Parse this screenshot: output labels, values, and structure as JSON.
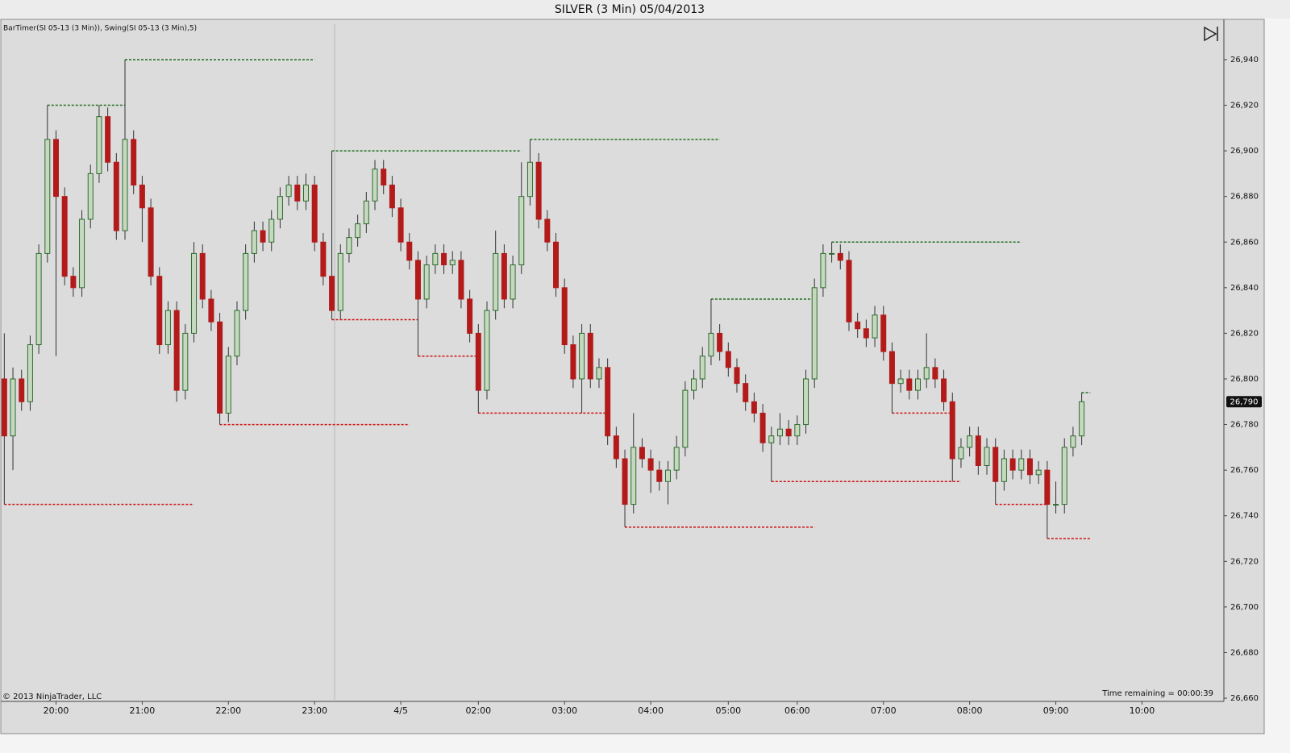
{
  "chart_data": {
    "type": "candlestick",
    "title": "SILVER (3 Min)  05/04/2013",
    "indicator_label": "BarTimer(SI 05-13 (3 Min)), Swing(SI 05-13 (3 Min),5)",
    "copyright": "© 2013 NinjaTrader, LLC",
    "time_remaining": "Time remaining = 00:00:39",
    "up_fill": "#c6d9c0",
    "up_stroke": "#2e6b2e",
    "down_fill": "#b31b1b",
    "wick_color": "#333333",
    "swing_high_color": "#1f6f1f",
    "swing_low_color": "#d01010",
    "last_price": {
      "value": 26790,
      "label": "26,790"
    },
    "ylim": [
      26658.6,
      26957.3
    ],
    "yticks": [
      {
        "value": 26660,
        "label": "26,660"
      },
      {
        "value": 26680,
        "label": "26,680"
      },
      {
        "value": 26700,
        "label": "26,700"
      },
      {
        "value": 26720,
        "label": "26,720"
      },
      {
        "value": 26740,
        "label": "26,740"
      },
      {
        "value": 26760,
        "label": "26,760"
      },
      {
        "value": 26780,
        "label": "26,780"
      },
      {
        "value": 26800,
        "label": "26,800"
      },
      {
        "value": 26820,
        "label": "26,820"
      },
      {
        "value": 26840,
        "label": "26,840"
      },
      {
        "value": 26860,
        "label": "26,860"
      },
      {
        "value": 26880,
        "label": "26,880"
      },
      {
        "value": 26900,
        "label": "26,900"
      },
      {
        "value": 26920,
        "label": "26,920"
      },
      {
        "value": 26940,
        "label": "26,940"
      }
    ],
    "categories": [
      null,
      null,
      null,
      null,
      null,
      null,
      "20:00",
      null,
      null,
      null,
      null,
      null,
      null,
      null,
      null,
      null,
      "21:00",
      null,
      null,
      null,
      null,
      null,
      null,
      null,
      null,
      null,
      "22:00",
      null,
      null,
      null,
      null,
      null,
      null,
      null,
      null,
      null,
      "23:00",
      null,
      null,
      null,
      null,
      null,
      null,
      null,
      null,
      null,
      "4/5",
      null,
      null,
      null,
      null,
      null,
      null,
      null,
      null,
      "02:00",
      null,
      null,
      null,
      null,
      null,
      null,
      null,
      null,
      null,
      "03:00",
      null,
      null,
      null,
      null,
      null,
      null,
      null,
      null,
      null,
      "04:00",
      null,
      null,
      null,
      null,
      null,
      null,
      null,
      null,
      "05:00",
      null,
      null,
      null,
      null,
      null,
      null,
      null,
      "06:00",
      null,
      null,
      null,
      null,
      null,
      null,
      null,
      null,
      null,
      "07:00",
      null,
      null,
      null,
      null,
      null,
      null,
      null,
      null,
      null,
      "08:00",
      null,
      null,
      null,
      null,
      null,
      null,
      null,
      null,
      null,
      "09:00",
      null,
      null,
      null,
      null,
      null,
      null,
      null,
      null,
      null,
      "10:00",
      null,
      null,
      null,
      null,
      null,
      null,
      null,
      null,
      null
    ],
    "open": [
      26800,
      26775,
      26800,
      26790,
      26815,
      26855,
      26905,
      26880,
      26845,
      26840,
      26870,
      26890,
      26915,
      26895,
      26865,
      26905,
      26885,
      26875,
      26845,
      26815,
      26830,
      26795,
      26820,
      26855,
      26835,
      26825,
      26785,
      26810,
      26830,
      26855,
      26865,
      26860,
      26870,
      26880,
      26885,
      26878,
      26885,
      26860,
      26845,
      26830,
      26855,
      26862,
      26868,
      26878,
      26892,
      26885,
      26875,
      26860,
      26852,
      26835,
      26850,
      26855,
      26850,
      26852,
      26835,
      26820,
      26795,
      26830,
      26855,
      26835,
      26850,
      26880,
      26895,
      26870,
      26860,
      26840,
      26815,
      26800,
      26820,
      26800,
      26805,
      26775,
      26765,
      26745,
      26770,
      26765,
      26760,
      26755,
      26760,
      26770,
      26795,
      26800,
      26810,
      26820,
      26812,
      26805,
      26798,
      26790,
      26785,
      26772,
      26775,
      26778,
      26775,
      26780,
      26800,
      26840,
      26855,
      26855,
      26852,
      26825,
      26822,
      26818,
      26828,
      26812,
      26798,
      26800,
      26795,
      26800,
      26805,
      26800,
      26790,
      26765,
      26770,
      26775,
      26762,
      26770,
      26755,
      26765,
      26760,
      26765,
      26758,
      26760,
      26745,
      26745,
      26770,
      26775,
      null,
      null,
      null,
      null,
      null,
      null,
      null,
      null,
      null,
      null,
      null,
      null,
      null,
      null,
      null,
      null
    ],
    "high": [
      26820,
      26805,
      26804,
      26819,
      26859,
      26920,
      26909,
      26884,
      26849,
      26874,
      26894,
      26920,
      26919,
      26899,
      26940,
      26909,
      26889,
      26879,
      26849,
      26834,
      26834,
      26824,
      26860,
      26859,
      26839,
      26829,
      26814,
      26834,
      26859,
      26869,
      26869,
      26874,
      26884,
      26889,
      26889,
      26890,
      26889,
      26864,
      26900,
      26859,
      26866,
      26872,
      26882,
      26896,
      26896,
      26889,
      26879,
      26864,
      26856,
      26854,
      26859,
      26859,
      26856,
      26856,
      26839,
      26824,
      26834,
      26865,
      26859,
      26854,
      26895,
      26905,
      26899,
      26874,
      26864,
      26844,
      26819,
      26824,
      26824,
      26809,
      26809,
      26779,
      26769,
      26785,
      26774,
      26769,
      26764,
      26764,
      26775,
      26799,
      26804,
      26814,
      26835,
      26824,
      26816,
      26809,
      26802,
      26794,
      26789,
      26779,
      26785,
      26782,
      26784,
      26804,
      26844,
      26859,
      26860,
      26859,
      26856,
      26829,
      26826,
      26832,
      26832,
      26816,
      26804,
      26804,
      26804,
      26820,
      26809,
      26804,
      26794,
      26774,
      26779,
      26779,
      26774,
      26774,
      26769,
      26769,
      26769,
      26769,
      26764,
      26764,
      26755,
      26774,
      26779,
      26794,
      null,
      null,
      null,
      null,
      null,
      null,
      null,
      null,
      null,
      null,
      null,
      null,
      null,
      null,
      null,
      null
    ],
    "low": [
      26745,
      26760,
      26786,
      26786,
      26811,
      26851,
      26810,
      26841,
      26836,
      26836,
      26866,
      26886,
      26891,
      26861,
      26861,
      26881,
      26860,
      26841,
      26811,
      26811,
      26790,
      26791,
      26816,
      26831,
      26821,
      26780,
      26781,
      26806,
      26826,
      26851,
      26856,
      26856,
      26866,
      26876,
      26874,
      26874,
      26856,
      26841,
      26826,
      26826,
      26851,
      26858,
      26864,
      26874,
      26881,
      26871,
      26856,
      26848,
      26810,
      26831,
      26846,
      26846,
      26846,
      26831,
      26816,
      26785,
      26791,
      26826,
      26831,
      26831,
      26846,
      26876,
      26866,
      26856,
      26836,
      26811,
      26796,
      26785,
      26796,
      26796,
      26771,
      26761,
      26735,
      26741,
      26761,
      26750,
      26751,
      26745,
      26756,
      26766,
      26791,
      26796,
      26806,
      26808,
      26801,
      26794,
      26786,
      26781,
      26768,
      26755,
      26771,
      26771,
      26771,
      26776,
      26796,
      26836,
      26851,
      26848,
      26821,
      26818,
      26814,
      26814,
      26808,
      26785,
      26794,
      26791,
      26791,
      26796,
      26796,
      26786,
      26755,
      26761,
      26766,
      26758,
      26758,
      26745,
      26751,
      26756,
      26756,
      26754,
      26754,
      26730,
      26741,
      26741,
      26766,
      26771,
      null,
      null,
      null,
      null,
      null,
      null,
      null,
      null,
      null,
      null,
      null,
      null,
      null,
      null,
      null,
      null
    ],
    "close": [
      26775,
      26800,
      26790,
      26815,
      26855,
      26905,
      26880,
      26845,
      26840,
      26870,
      26890,
      26915,
      26895,
      26865,
      26905,
      26885,
      26875,
      26845,
      26815,
      26830,
      26795,
      26820,
      26855,
      26835,
      26825,
      26785,
      26810,
      26830,
      26855,
      26865,
      26860,
      26870,
      26880,
      26885,
      26878,
      26885,
      26860,
      26845,
      26830,
      26855,
      26862,
      26868,
      26878,
      26892,
      26885,
      26875,
      26860,
      26852,
      26835,
      26850,
      26855,
      26850,
      26852,
      26835,
      26820,
      26795,
      26830,
      26855,
      26835,
      26850,
      26880,
      26895,
      26870,
      26860,
      26840,
      26815,
      26800,
      26820,
      26800,
      26805,
      26775,
      26765,
      26745,
      26770,
      26765,
      26760,
      26755,
      26760,
      26770,
      26795,
      26800,
      26810,
      26820,
      26812,
      26805,
      26798,
      26790,
      26785,
      26772,
      26775,
      26778,
      26775,
      26780,
      26800,
      26840,
      26855,
      26855,
      26852,
      26825,
      26822,
      26818,
      26828,
      26812,
      26798,
      26800,
      26795,
      26800,
      26805,
      26800,
      26790,
      26765,
      26770,
      26775,
      26762,
      26770,
      26755,
      26765,
      26760,
      26765,
      26758,
      26760,
      26745,
      26745,
      26770,
      26775,
      26790,
      null,
      null,
      null,
      null,
      null,
      null,
      null,
      null,
      null,
      null,
      null,
      null,
      null,
      null,
      null,
      null
    ]
  }
}
